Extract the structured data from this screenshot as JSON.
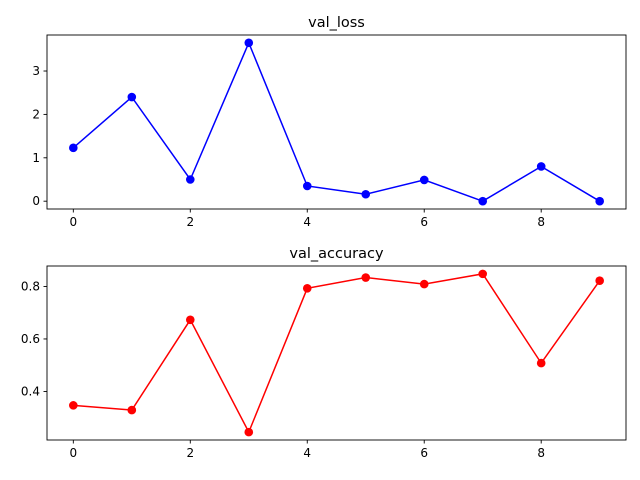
{
  "chart_data": [
    {
      "type": "line",
      "title": "val_loss",
      "xlabel": "",
      "ylabel": "",
      "x": [
        0,
        1,
        2,
        3,
        4,
        5,
        6,
        7,
        8,
        9
      ],
      "series": [
        {
          "values": [
            1.23,
            2.4,
            0.5,
            3.65,
            0.35,
            0.16,
            0.49,
            0.0,
            0.8,
            0.0
          ],
          "color": "#0000ff",
          "marker": "circle"
        }
      ],
      "xlim": [
        -0.45,
        9.45
      ],
      "ylim": [
        -0.18,
        3.83
      ],
      "xticks": [
        0,
        2,
        4,
        6,
        8
      ],
      "yticks": [
        0,
        1,
        2,
        3
      ],
      "grid": false
    },
    {
      "type": "line",
      "title": "val_accuracy",
      "xlabel": "",
      "ylabel": "",
      "x": [
        0,
        1,
        2,
        3,
        4,
        5,
        6,
        7,
        8,
        9
      ],
      "series": [
        {
          "values": [
            0.347,
            0.329,
            0.673,
            0.245,
            0.793,
            0.834,
            0.809,
            0.848,
            0.508,
            0.822
          ],
          "color": "#ff0000",
          "marker": "circle"
        }
      ],
      "xlim": [
        -0.45,
        9.45
      ],
      "ylim": [
        0.215,
        0.878
      ],
      "xticks": [
        0,
        2,
        4,
        6,
        8
      ],
      "yticks": [
        0.4,
        0.6,
        0.8
      ],
      "grid": false
    }
  ]
}
